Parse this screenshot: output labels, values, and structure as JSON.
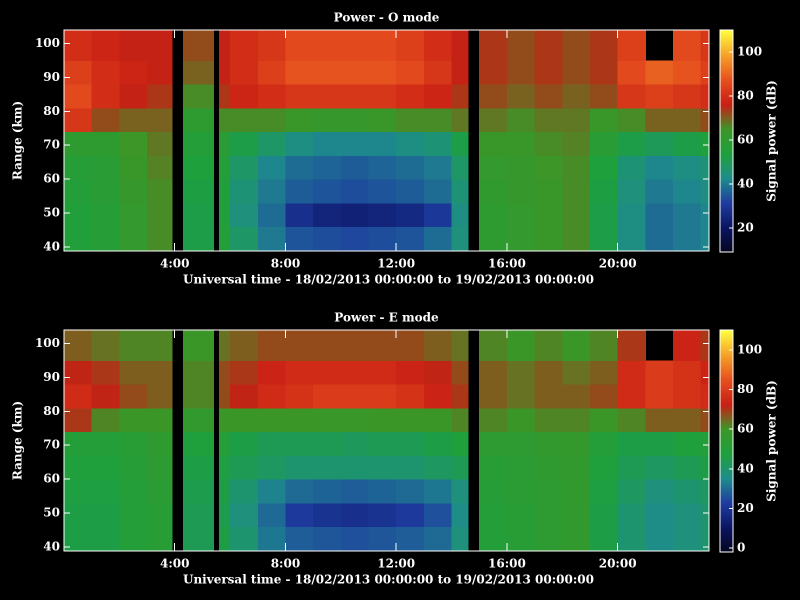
{
  "chart_data": [
    {
      "type": "heatmap",
      "title": "Power - O mode",
      "x_label": "Universal time - 18/02/2013 00:00:00 to 19/02/2013 00:00:00",
      "y_label": "Range (km)",
      "colorbar_label": "Signal power (dB)",
      "x_bins": [
        0,
        1,
        2,
        3,
        3.9,
        4.3,
        5.4,
        5.6,
        6,
        7,
        8,
        9,
        10,
        11,
        12,
        13,
        14,
        14.6,
        15,
        16,
        17,
        18,
        19,
        20,
        21,
        22,
        23,
        23.3
      ],
      "y_bins": [
        39,
        46,
        53,
        60,
        67,
        74,
        81,
        88,
        95,
        104
      ],
      "values": [
        [
          55,
          57,
          62,
          66,
          null,
          52,
          null,
          56,
          48,
          40,
          35,
          34,
          33,
          34,
          35,
          38,
          45,
          null,
          60,
          62,
          64,
          66,
          52,
          44,
          38,
          40,
          42
        ],
        [
          55,
          57,
          62,
          66,
          null,
          52,
          null,
          55,
          45,
          38,
          28,
          25,
          24,
          25,
          26,
          30,
          44,
          null,
          60,
          62,
          64,
          66,
          52,
          44,
          38,
          40,
          42
        ],
        [
          56,
          58,
          63,
          66,
          null,
          53,
          null,
          55,
          46,
          40,
          36,
          35,
          34,
          35,
          36,
          38,
          46,
          null,
          61,
          63,
          64,
          66,
          53,
          45,
          40,
          42,
          44
        ],
        [
          57,
          58,
          64,
          67,
          null,
          54,
          null,
          56,
          48,
          42,
          38,
          37,
          36,
          37,
          38,
          40,
          48,
          null,
          62,
          63,
          65,
          66,
          54,
          46,
          42,
          44,
          46
        ],
        [
          60,
          60,
          65,
          68,
          null,
          56,
          null,
          58,
          52,
          48,
          44,
          42,
          42,
          42,
          44,
          46,
          52,
          null,
          64,
          64,
          66,
          67,
          58,
          52,
          50,
          52,
          54
        ],
        [
          82,
          72,
          70,
          70,
          null,
          60,
          null,
          66,
          66,
          66,
          64,
          63,
          63,
          64,
          66,
          66,
          68,
          null,
          68,
          66,
          68,
          68,
          64,
          66,
          70,
          70,
          72
        ],
        [
          86,
          80,
          76,
          74,
          null,
          66,
          null,
          74,
          78,
          80,
          82,
          82,
          82,
          82,
          80,
          78,
          74,
          null,
          72,
          70,
          72,
          70,
          72,
          82,
          84,
          82,
          80
        ],
        [
          84,
          80,
          78,
          76,
          null,
          70,
          null,
          76,
          80,
          84,
          88,
          88,
          88,
          88,
          86,
          82,
          76,
          null,
          74,
          72,
          74,
          72,
          74,
          86,
          90,
          88,
          84
        ],
        [
          80,
          78,
          76,
          76,
          null,
          72,
          null,
          76,
          80,
          82,
          86,
          86,
          86,
          86,
          84,
          80,
          76,
          null,
          74,
          72,
          74,
          72,
          74,
          84,
          null,
          86,
          82
        ]
      ],
      "xlim": [
        0,
        23.3
      ],
      "ylim": [
        38.8,
        104
      ],
      "xticks": [
        {
          "value": 4,
          "label": "4:00"
        },
        {
          "value": 8,
          "label": "8:00"
        },
        {
          "value": 12,
          "label": "12:00"
        },
        {
          "value": 16,
          "label": "16:00"
        },
        {
          "value": 20,
          "label": "20:00"
        }
      ],
      "yticks": [
        40,
        50,
        60,
        70,
        80,
        90,
        100
      ],
      "clim": [
        9,
        110
      ],
      "cticks": [
        20,
        40,
        60,
        80,
        100
      ],
      "colorscale": [
        "#05051e",
        "#0a1460",
        "#1e3ca0",
        "#1e8c8c",
        "#1ea03c",
        "#3c9628",
        "#c81e14",
        "#e6501e",
        "#f5a028",
        "#ffff3c"
      ]
    },
    {
      "type": "heatmap",
      "title": "Power - E mode",
      "x_label": "Universal time - 18/02/2013 00:00:00 to 19/02/2013 00:00:00",
      "y_label": "Range (km)",
      "colorbar_label": "Signal power (dB)",
      "x_bins": [
        0,
        1,
        2,
        3,
        3.9,
        4.3,
        5.4,
        5.6,
        6,
        7,
        8,
        9,
        10,
        11,
        12,
        13,
        14,
        14.6,
        15,
        16,
        17,
        18,
        19,
        20,
        21,
        22,
        23,
        23.3
      ],
      "y_bins": [
        39,
        46,
        53,
        60,
        67,
        74,
        81,
        88,
        95,
        104
      ],
      "values": [
        [
          46,
          46,
          50,
          52,
          null,
          44,
          null,
          46,
          40,
          32,
          28,
          27,
          26,
          27,
          28,
          30,
          38,
          null,
          50,
          52,
          54,
          56,
          46,
          40,
          36,
          38,
          40
        ],
        [
          46,
          46,
          50,
          52,
          null,
          44,
          null,
          45,
          38,
          30,
          22,
          20,
          19,
          20,
          22,
          26,
          36,
          null,
          50,
          52,
          54,
          56,
          46,
          40,
          36,
          38,
          40
        ],
        [
          47,
          47,
          50,
          53,
          null,
          45,
          null,
          46,
          40,
          34,
          30,
          29,
          28,
          29,
          30,
          32,
          38,
          null,
          51,
          53,
          54,
          56,
          47,
          42,
          38,
          40,
          42
        ],
        [
          48,
          48,
          51,
          54,
          null,
          46,
          null,
          47,
          44,
          42,
          40,
          40,
          40,
          40,
          40,
          42,
          44,
          null,
          52,
          53,
          55,
          56,
          48,
          44,
          42,
          44,
          46
        ],
        [
          50,
          50,
          52,
          55,
          null,
          48,
          null,
          50,
          46,
          44,
          44,
          44,
          43,
          44,
          44,
          46,
          48,
          null,
          54,
          54,
          56,
          57,
          50,
          46,
          46,
          48,
          50
        ],
        [
          70,
          62,
          60,
          60,
          null,
          56,
          null,
          60,
          60,
          60,
          60,
          59,
          59,
          60,
          60,
          60,
          62,
          null,
          62,
          60,
          62,
          62,
          60,
          62,
          66,
          66,
          68
        ],
        [
          76,
          72,
          68,
          66,
          null,
          62,
          null,
          68,
          72,
          76,
          78,
          80,
          80,
          80,
          78,
          74,
          70,
          null,
          66,
          64,
          66,
          66,
          68,
          76,
          80,
          78,
          76
        ],
        [
          72,
          70,
          66,
          66,
          null,
          62,
          null,
          68,
          70,
          74,
          76,
          76,
          76,
          76,
          74,
          72,
          68,
          null,
          66,
          64,
          66,
          64,
          66,
          76,
          80,
          78,
          74
        ],
        [
          66,
          64,
          62,
          62,
          null,
          60,
          null,
          64,
          66,
          68,
          68,
          68,
          68,
          68,
          68,
          66,
          64,
          null,
          62,
          60,
          62,
          60,
          62,
          70,
          null,
          74,
          70
        ]
      ],
      "xlim": [
        0,
        23.3
      ],
      "ylim": [
        38.8,
        104
      ],
      "xticks": [
        {
          "value": 4,
          "label": "4:00"
        },
        {
          "value": 8,
          "label": "8:00"
        },
        {
          "value": 12,
          "label": "12:00"
        },
        {
          "value": 16,
          "label": "16:00"
        },
        {
          "value": 20,
          "label": "20:00"
        }
      ],
      "yticks": [
        40,
        50,
        60,
        70,
        80,
        90,
        100
      ],
      "clim": [
        -2,
        110
      ],
      "cticks": [
        0,
        20,
        40,
        60,
        80,
        100
      ],
      "colorscale": [
        "#05051e",
        "#0a1460",
        "#1e3ca0",
        "#1e8c8c",
        "#1ea03c",
        "#3c9628",
        "#c81e14",
        "#e6501e",
        "#f5a028",
        "#ffff3c"
      ]
    }
  ]
}
